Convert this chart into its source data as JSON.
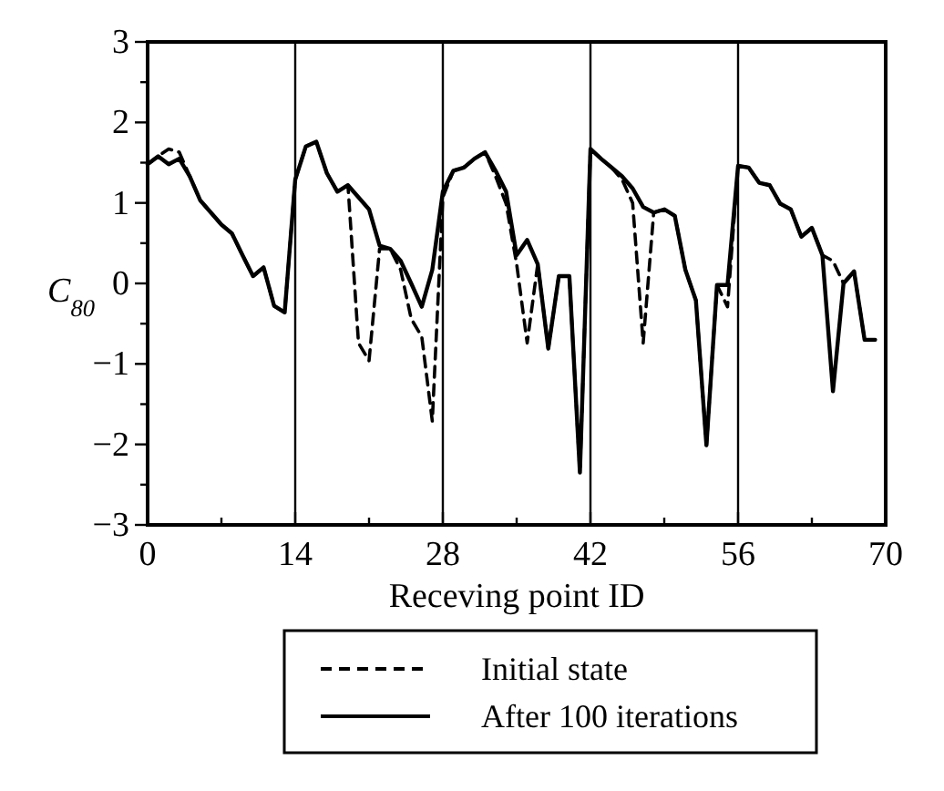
{
  "chart_data": {
    "type": "line",
    "xlabel": "Receving point ID",
    "ylabel": "C$_{80}$",
    "x": [
      0,
      1,
      2,
      3,
      4,
      5,
      6,
      7,
      8,
      9,
      10,
      11,
      12,
      13,
      14,
      15,
      16,
      17,
      18,
      19,
      20,
      21,
      22,
      23,
      24,
      25,
      26,
      27,
      28,
      29,
      30,
      31,
      32,
      33,
      34,
      35,
      36,
      37,
      38,
      39,
      40,
      41,
      42,
      43,
      44,
      45,
      46,
      47,
      48,
      49,
      50,
      51,
      52,
      53,
      54,
      55,
      56,
      57,
      58,
      59,
      60,
      61,
      62,
      63,
      64,
      65,
      66,
      67,
      68,
      69
    ],
    "xlim": [
      0,
      70
    ],
    "xticks": [
      0,
      {
        "value": 7,
        "label": null
      },
      14,
      {
        "value": 21,
        "label": null
      },
      28,
      {
        "value": 35,
        "label": null
      },
      42,
      {
        "value": 49,
        "label": null
      },
      56,
      {
        "value": 63,
        "label": null
      },
      70
    ],
    "ylim": [
      -3,
      3
    ],
    "yticks": [
      -3,
      {
        "value": -2.5,
        "label": null
      },
      -2,
      {
        "value": -1.5,
        "label": null
      },
      -1,
      {
        "value": -0.5,
        "label": null
      },
      0,
      {
        "value": 0.5,
        "label": null
      },
      1,
      {
        "value": 1.5,
        "label": null
      },
      2,
      {
        "value": 2.5,
        "label": null
      },
      3
    ],
    "ref_lines": [
      {
        "axis": "x",
        "value": 14,
        "color": "#000000"
      },
      {
        "axis": "x",
        "value": 28,
        "color": "#000000"
      },
      {
        "axis": "x",
        "value": 42,
        "color": "#000000"
      },
      {
        "axis": "x",
        "value": 56,
        "color": "#000000"
      }
    ],
    "legend": "bottom",
    "marker": "none",
    "series": [
      {
        "name": "Initial state",
        "color": "#000000",
        "line_style": "dashed",
        "values": [
          1.48,
          1.58,
          1.67,
          1.63,
          1.33,
          1.03,
          0.88,
          0.73,
          0.62,
          0.35,
          0.09,
          0.2,
          -0.28,
          -0.36,
          1.29,
          1.7,
          1.76,
          1.37,
          1.14,
          1.22,
          -0.74,
          -0.96,
          0.43,
          0.43,
          0.17,
          -0.44,
          -0.66,
          -1.71,
          1.07,
          1.4,
          1.44,
          1.55,
          1.63,
          1.33,
          0.99,
          0.24,
          -0.74,
          0.24,
          -0.81,
          0.09,
          0.09,
          -2.35,
          1.67,
          1.55,
          1.44,
          1.29,
          1.0,
          -0.74,
          0.88,
          0.92,
          0.84,
          0.17,
          -0.21,
          -2.01,
          -0.02,
          -0.29,
          1.46,
          1.44,
          1.25,
          1.22,
          0.99,
          0.92,
          0.58,
          0.69,
          0.35,
          0.28,
          0.0,
          0.15,
          -0.7,
          -0.7
        ]
      },
      {
        "name": "After 100 iterations",
        "color": "#000000",
        "line_style": "solid",
        "values": [
          1.48,
          1.58,
          1.48,
          1.55,
          1.33,
          1.03,
          0.88,
          0.73,
          0.62,
          0.35,
          0.09,
          0.2,
          -0.28,
          -0.36,
          1.29,
          1.7,
          1.76,
          1.37,
          1.14,
          1.22,
          1.07,
          0.92,
          0.47,
          0.43,
          0.28,
          0.0,
          -0.29,
          0.17,
          1.14,
          1.4,
          1.44,
          1.55,
          1.63,
          1.4,
          1.14,
          0.35,
          0.54,
          0.24,
          -0.81,
          0.09,
          0.09,
          -2.35,
          1.67,
          1.55,
          1.44,
          1.33,
          1.18,
          0.95,
          0.88,
          0.92,
          0.84,
          0.17,
          -0.21,
          -2.01,
          -0.02,
          -0.02,
          1.46,
          1.44,
          1.25,
          1.22,
          0.99,
          0.92,
          0.58,
          0.69,
          0.35,
          -1.34,
          0.0,
          0.15,
          -0.7,
          -0.7
        ]
      }
    ]
  }
}
